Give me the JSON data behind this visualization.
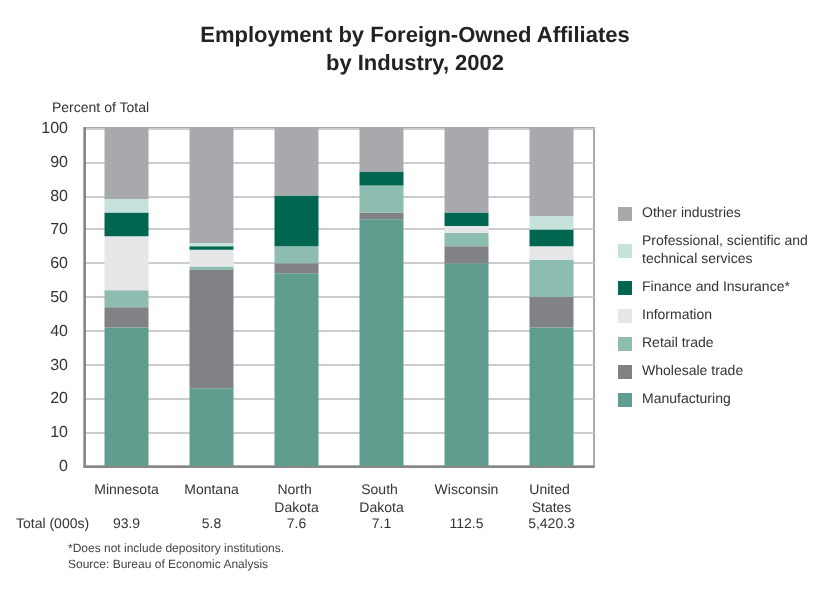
{
  "chart_data": {
    "type": "bar",
    "stacked": true,
    "title": "Employment by Foreign-Owned Affiliates\nby Industry, 2002",
    "ylabel": "Percent of Total",
    "categories": [
      "Minnesota",
      "Montana",
      "North Dakota",
      "South Dakota",
      "Wisconsin",
      "United States"
    ],
    "series": [
      {
        "name": "Manufacturing",
        "color": "#5f9d8e",
        "values": [
          41,
          23,
          57,
          73,
          60,
          41
        ]
      },
      {
        "name": "Wholesale trade",
        "color": "#808285",
        "values": [
          6,
          35,
          3,
          2,
          5,
          9
        ]
      },
      {
        "name": "Retail trade",
        "color": "#8dbcb0",
        "values": [
          5,
          1,
          5,
          8,
          4,
          11
        ]
      },
      {
        "name": "Information",
        "color": "#e6e7e8",
        "values": [
          16,
          5,
          0,
          0,
          2,
          4
        ]
      },
      {
        "name": "Finance and Insurance*",
        "color": "#00664f",
        "values": [
          7,
          1,
          15,
          4,
          4,
          5
        ]
      },
      {
        "name": "Professional, scientific and technical services",
        "color": "#c5e3dc",
        "values": [
          4,
          1,
          0,
          0,
          0,
          4
        ]
      },
      {
        "name": "Other industries",
        "color": "#a7a9ac",
        "values": [
          21,
          34,
          20,
          13,
          25,
          26
        ]
      }
    ],
    "ylim": [
      0,
      100
    ],
    "yticks": [
      0,
      10,
      20,
      30,
      40,
      50,
      60,
      70,
      80,
      90,
      100
    ],
    "grid": "y",
    "legend": "right",
    "annotations": [
      "Total (000s)",
      "93.9",
      "5.8",
      "7.6",
      "7.1",
      "112.5",
      "5,420.3",
      "*Does not include depository institutions.\nSource: Bureau of Economic Analysis"
    ]
  }
}
